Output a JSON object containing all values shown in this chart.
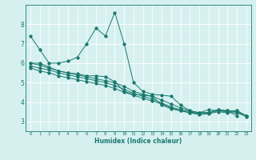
{
  "xlabel": "Humidex (Indice chaleur)",
  "ylabel": "",
  "bg_color": "#d6f0f0",
  "line_color": "#1a7a6e",
  "grid_color": "#ffffff",
  "xlim": [
    -0.5,
    23.5
  ],
  "ylim": [
    2.5,
    9.0
  ],
  "yticks": [
    3,
    4,
    5,
    6,
    7,
    8
  ],
  "xticks": [
    0,
    1,
    2,
    3,
    4,
    5,
    6,
    7,
    8,
    9,
    10,
    11,
    12,
    13,
    14,
    15,
    16,
    17,
    18,
    19,
    20,
    21,
    22,
    23
  ],
  "series": [
    [
      7.4,
      6.7,
      6.0,
      6.0,
      6.1,
      6.3,
      7.0,
      7.8,
      7.4,
      8.6,
      7.0,
      5.0,
      4.55,
      4.4,
      4.35,
      4.3,
      3.85,
      3.55,
      3.45,
      3.45,
      3.6,
      3.55,
      3.55,
      3.3
    ],
    [
      6.0,
      6.0,
      5.8,
      5.6,
      5.5,
      5.45,
      5.35,
      5.35,
      5.3,
      5.05,
      4.55,
      4.4,
      4.35,
      4.3,
      3.85,
      3.65,
      3.55,
      3.45,
      3.45,
      3.6,
      3.55,
      3.55,
      3.3,
      null
    ],
    [
      6.0,
      5.9,
      5.75,
      5.6,
      5.5,
      5.4,
      5.3,
      5.2,
      5.1,
      5.0,
      4.8,
      4.55,
      4.4,
      4.3,
      4.1,
      3.9,
      3.7,
      3.55,
      3.45,
      3.45,
      3.6,
      3.55,
      3.55,
      3.3
    ],
    [
      5.85,
      5.75,
      5.65,
      5.5,
      5.4,
      5.3,
      5.2,
      5.1,
      5.0,
      4.85,
      4.65,
      4.45,
      4.3,
      4.15,
      3.95,
      3.75,
      3.6,
      3.5,
      3.4,
      3.45,
      3.55,
      3.5,
      3.5,
      3.3
    ],
    [
      5.75,
      5.6,
      5.5,
      5.35,
      5.25,
      5.15,
      5.05,
      4.95,
      4.85,
      4.7,
      4.5,
      4.35,
      4.2,
      4.05,
      3.9,
      3.7,
      3.55,
      3.45,
      3.35,
      3.4,
      3.5,
      3.45,
      3.45,
      3.25
    ]
  ],
  "figsize": [
    3.2,
    2.0
  ],
  "dpi": 100
}
